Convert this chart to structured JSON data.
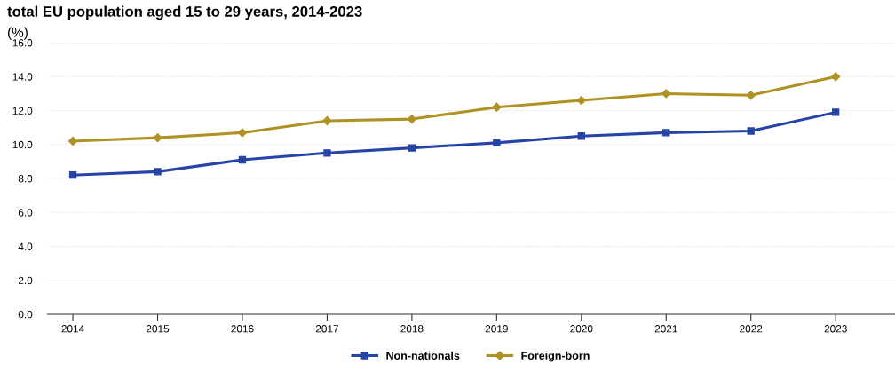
{
  "chart_data": {
    "type": "line",
    "title": "total EU population aged 15 to 29 years, 2014-2023",
    "subtitle": "(%)",
    "categories": [
      "2014",
      "2015",
      "2016",
      "2017",
      "2018",
      "2019",
      "2020",
      "2021",
      "2022",
      "2023"
    ],
    "series": [
      {
        "name": "Non-nationals",
        "color": "#2644a8",
        "marker": "square",
        "values": [
          8.2,
          8.4,
          9.1,
          9.5,
          9.8,
          10.1,
          10.5,
          10.7,
          10.8,
          11.9
        ]
      },
      {
        "name": "Foreign-born",
        "color": "#b09224",
        "marker": "diamond",
        "values": [
          10.2,
          10.4,
          10.7,
          11.4,
          11.5,
          12.2,
          12.6,
          13.0,
          12.9,
          14.0
        ]
      }
    ],
    "ylim": [
      0,
      16
    ],
    "yticks": [
      {
        "value": 0,
        "label": "0.0"
      },
      {
        "value": 2,
        "label": "2.0"
      },
      {
        "value": 4,
        "label": "4.0"
      },
      {
        "value": 6,
        "label": "6.0"
      },
      {
        "value": 8,
        "label": "8.0"
      },
      {
        "value": 10,
        "label": "10.0"
      },
      {
        "value": 12,
        "label": "12.0"
      },
      {
        "value": 14,
        "label": "14.0"
      },
      {
        "value": 16,
        "label": "16.0"
      }
    ],
    "grid": "y",
    "legend": "bottom",
    "line_style": "solid"
  }
}
